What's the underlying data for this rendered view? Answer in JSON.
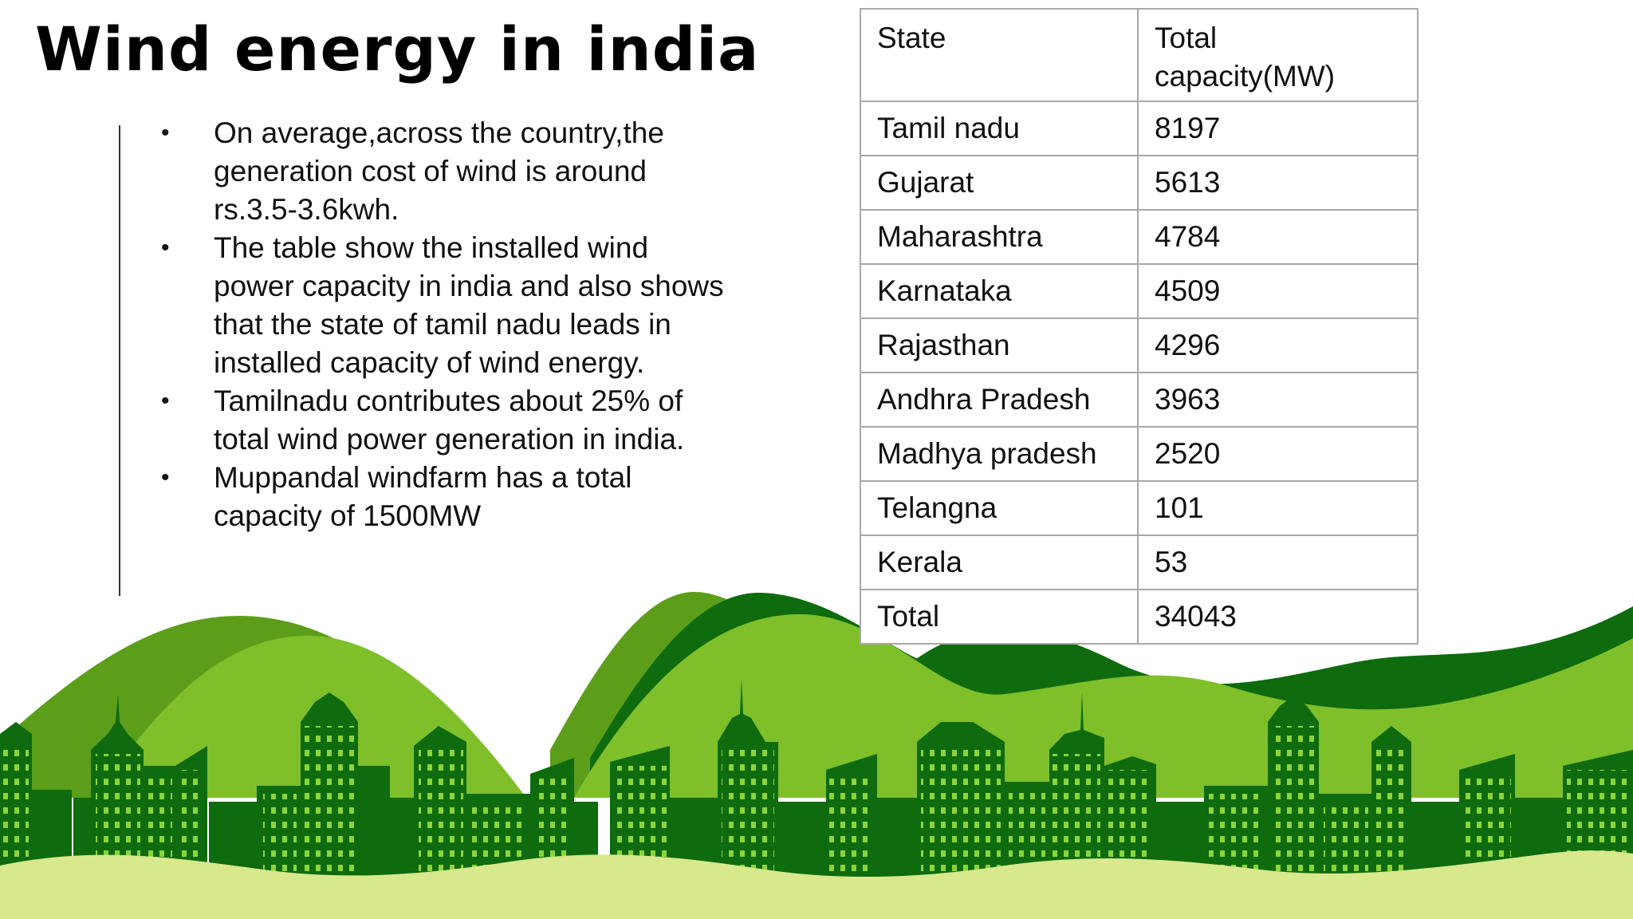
{
  "slide": {
    "title": "Wind energy in india",
    "bullets": [
      "On average,across the country,the generation cost of wind is around rs.3.5-3.6kwh.",
      "The table show the installed wind power capacity in india and also shows that the state of tamil nadu leads in installed capacity of wind energy.",
      "Tamilnadu contributes about 25% of total wind power generation in india.",
      "Muppandal windfarm has a total capacity of 1500MW"
    ]
  },
  "table": {
    "headers": [
      "State",
      "Total capacity(MW)"
    ],
    "rows": [
      [
        "Tamil nadu",
        "8197"
      ],
      [
        "Gujarat",
        "5613"
      ],
      [
        "Maharashtra",
        "4784"
      ],
      [
        "Karnataka",
        "4509"
      ],
      [
        "Rajasthan",
        "4296"
      ],
      [
        "Andhra Pradesh",
        "3963"
      ],
      [
        "Madhya pradesh",
        "2520"
      ],
      [
        "Telangna",
        "101"
      ],
      [
        "Kerala",
        "53"
      ],
      [
        "Total",
        "34043"
      ]
    ]
  },
  "colors": {
    "dark_green": "#0e6b0e",
    "mid_green": "#5c9e1a",
    "light_green": "#7fbf2a",
    "pale_green": "#d8e88c",
    "window": "#8cd43a"
  },
  "icons": [
    "city-skyline-illustration",
    "green-hills-illustration"
  ]
}
